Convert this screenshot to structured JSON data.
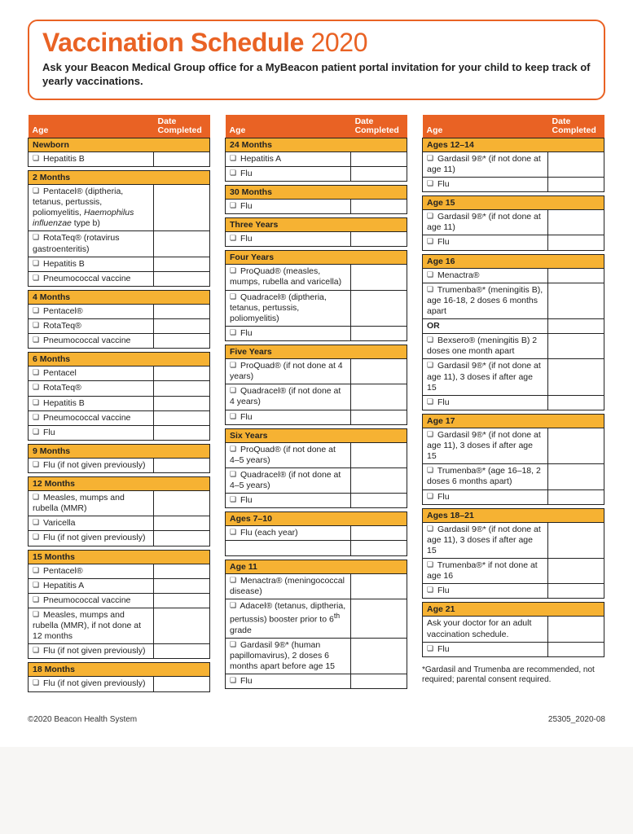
{
  "colors": {
    "accent": "#e96224",
    "subheader": "#f6b233",
    "text": "#222222",
    "page_bg": "#ffffff",
    "body_bg": "#f7f6f4"
  },
  "header": {
    "title": "Vaccination Schedule",
    "year": "2020",
    "subtitle": "Ask your Beacon Medical Group office for a MyBeacon patient portal invitation for your child to keep track of yearly vaccinations."
  },
  "table_header": {
    "age": "Age",
    "date": "Date Completed"
  },
  "footnote": "*Gardasil and Trumenba are recommended, not required; parental consent required.",
  "footer": {
    "left": "©2020 Beacon Health System",
    "right": "25305_2020-08"
  },
  "columns": [
    [
      {
        "age": "Newborn",
        "items": [
          {
            "label": "Hepatitis B"
          }
        ]
      },
      {
        "age": "2 Months",
        "items": [
          {
            "label_html": "Pentacel® (diptheria, tetanus, pertussis, poliomyelitis, <em class='latin'>Haemophilus influenzae</em> type b)"
          },
          {
            "label": "RotaTeq® (rotavirus gastroenteritis)"
          },
          {
            "label": "Hepatitis B"
          },
          {
            "label": "Pneumococcal vaccine"
          }
        ]
      },
      {
        "age": "4 Months",
        "items": [
          {
            "label": "Pentacel®"
          },
          {
            "label": "RotaTeq®"
          },
          {
            "label": "Pneumococcal vaccine"
          }
        ]
      },
      {
        "age": "6 Months",
        "items": [
          {
            "label": "Pentacel"
          },
          {
            "label": "RotaTeq®"
          },
          {
            "label": "Hepatitis B"
          },
          {
            "label": "Pneumococcal vaccine"
          },
          {
            "label": "Flu"
          }
        ]
      },
      {
        "age": "9 Months",
        "items": [
          {
            "label": "Flu (if not given previously)"
          }
        ]
      },
      {
        "age": "12 Months",
        "items": [
          {
            "label": "Measles, mumps and rubella (MMR)"
          },
          {
            "label": "Varicella"
          },
          {
            "label": "Flu (if not given previously)"
          }
        ]
      },
      {
        "age": "15 Months",
        "items": [
          {
            "label": "Pentacel®"
          },
          {
            "label": "Hepatitis A"
          },
          {
            "label": "Pneumococcal vaccine"
          },
          {
            "label": "Measles, mumps and rubella (MMR), if not done at 12 months"
          },
          {
            "label": "Flu (if not given previously)"
          }
        ]
      },
      {
        "age": "18 Months",
        "items": [
          {
            "label": "Flu (if not given previously)"
          }
        ]
      }
    ],
    [
      {
        "age": "24 Months",
        "items": [
          {
            "label": "Hepatitis A"
          },
          {
            "label": "Flu"
          }
        ]
      },
      {
        "age": "30 Months",
        "items": [
          {
            "label": "Flu"
          }
        ]
      },
      {
        "age": "Three Years",
        "items": [
          {
            "label": "Flu"
          }
        ]
      },
      {
        "age": "Four Years",
        "items": [
          {
            "label": "ProQuad® (measles, mumps, rubella and varicella)"
          },
          {
            "label": "Quadracel® (diptheria, tetanus, pertussis, poliomyelitis)"
          },
          {
            "label": "Flu"
          }
        ]
      },
      {
        "age": "Five Years",
        "items": [
          {
            "label": "ProQuad® (if not done at 4 years)"
          },
          {
            "label": "Quadracel® (if not done at 4 years)"
          },
          {
            "label": "Flu"
          }
        ]
      },
      {
        "age": "Six Years",
        "items": [
          {
            "label": "ProQuad® (if not done at 4–5 years)"
          },
          {
            "label": "Quadracel® (if not done at 4–5 years)"
          },
          {
            "label": "Flu"
          }
        ]
      },
      {
        "age": "Ages 7–10",
        "items": [
          {
            "label": "Flu (each year)"
          },
          {
            "empty": true
          }
        ]
      },
      {
        "age": "Age 11",
        "items": [
          {
            "label": "Menactra® (meningococcal disease)"
          },
          {
            "label_html": "Adacel® (tetanus, diptheria, pertussis) booster prior to 6<sup>th</sup> grade"
          },
          {
            "label": "Gardasil 9®* (human papillomavirus), 2 doses 6 months apart before age 15"
          },
          {
            "label": "Flu"
          }
        ]
      }
    ],
    [
      {
        "age": "Ages 12–14",
        "items": [
          {
            "label": "Gardasil 9®* (if not done at age 11)"
          },
          {
            "label": "Flu"
          }
        ]
      },
      {
        "age": "Age 15",
        "items": [
          {
            "label": "Gardasil 9®* (if not done at age 11)"
          },
          {
            "label": "Flu"
          }
        ]
      },
      {
        "age": "Age 16",
        "items": [
          {
            "label": "Menactra®"
          },
          {
            "label": "Trumenba®* (meningitis B), age 16-18, 2 doses 6 months apart"
          },
          {
            "or": true,
            "label": "OR"
          },
          {
            "label": "Bexsero® (meningitis B) 2 doses one month apart"
          },
          {
            "label": "Gardasil 9®* (if not done at age 11), 3 doses if after age 15"
          },
          {
            "label": "Flu"
          }
        ]
      },
      {
        "age": "Age 17",
        "items": [
          {
            "label": "Gardasil 9®* (if not done at age 11), 3 doses if after age 15"
          },
          {
            "label": "Trumenba®* (age 16–18, 2 doses 6 months apart)"
          },
          {
            "label": "Flu"
          }
        ]
      },
      {
        "age": "Ages 18–21",
        "items": [
          {
            "label": "Gardasil 9®* (if not done at age 11), 3 doses if after age 15"
          },
          {
            "label": "Trumenba®* if not done at age 16"
          },
          {
            "label": "Flu"
          }
        ]
      },
      {
        "age": "Age 21",
        "items": [
          {
            "plain": true,
            "label": "Ask your doctor for an adult vaccination schedule."
          },
          {
            "label": "Flu"
          }
        ]
      }
    ]
  ]
}
